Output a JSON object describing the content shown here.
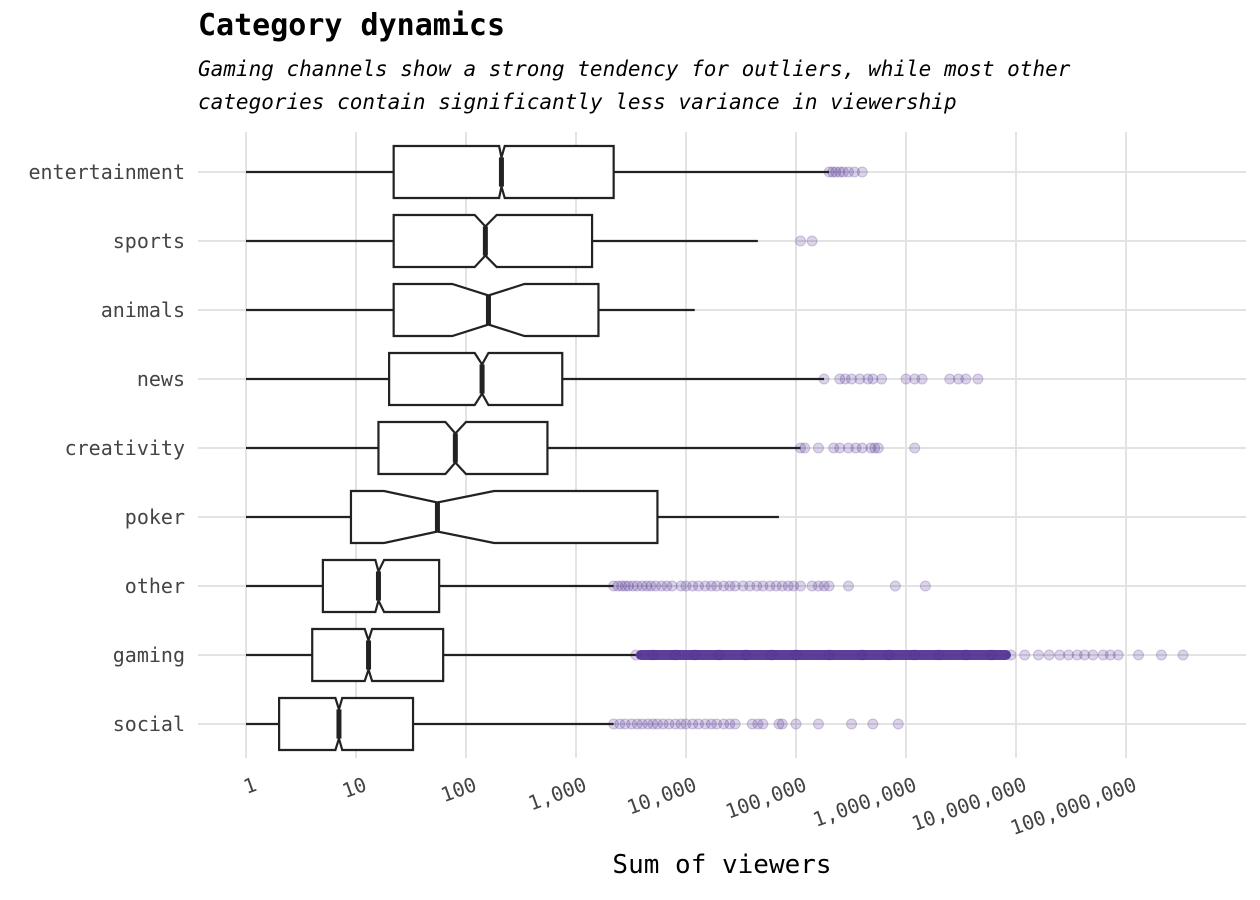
{
  "chart_data": {
    "type": "boxplot",
    "title": "Category dynamics",
    "subtitle": [
      "Gaming channels show a strong tendency for outliers, while most other",
      "categories contain significantly less variance in viewership"
    ],
    "xlabel": "Sum of viewers",
    "ylabel": "",
    "x_scale": "log10",
    "xlim": [
      0.6,
      750000000
    ],
    "x_ticks": [
      1,
      10,
      100,
      1000,
      10000,
      100000,
      1000000,
      10000000,
      100000000
    ],
    "x_tick_labels": [
      "1",
      "10",
      "100",
      "1,000",
      "10,000",
      "100,000",
      "1,000,000",
      "10,000,000",
      "100,000,000"
    ],
    "notched": true,
    "outlier_color": "#4b2a8f",
    "grid": true,
    "categories": [
      "entertainment",
      "sports",
      "animals",
      "news",
      "creativity",
      "poker",
      "other",
      "gaming",
      "social"
    ],
    "boxes": [
      {
        "category": "entertainment",
        "whisker_low": 1,
        "q1": 22,
        "median": 210,
        "q3": 2200,
        "whisker_high": 200000,
        "notch": [
          200,
          225
        ],
        "outliers": [
          200000,
          215000,
          230000,
          250000,
          270000,
          300000,
          340000,
          400000
        ]
      },
      {
        "category": "sports",
        "whisker_low": 1,
        "q1": 22,
        "median": 150,
        "q3": 1400,
        "whisker_high": 45000,
        "notch": [
          120,
          190
        ],
        "outliers": [
          110000,
          140000
        ]
      },
      {
        "category": "animals",
        "whisker_low": 1,
        "q1": 22,
        "median": 160,
        "q3": 1600,
        "whisker_high": 12000,
        "notch": [
          75,
          340
        ],
        "outliers": []
      },
      {
        "category": "news",
        "whisker_low": 1,
        "q1": 20,
        "median": 140,
        "q3": 750,
        "whisker_high": 180000,
        "notch": [
          120,
          160
        ],
        "outliers": [
          180000,
          250000,
          280000,
          320000,
          380000,
          450000,
          500000,
          600000,
          1000000,
          1200000,
          1400000,
          2500000,
          3000000,
          3500000,
          4500000
        ]
      },
      {
        "category": "creativity",
        "whisker_low": 1,
        "q1": 16,
        "median": 80,
        "q3": 550,
        "whisker_high": 110000,
        "notch": [
          65,
          100
        ],
        "outliers": [
          110000,
          120000,
          160000,
          220000,
          250000,
          300000,
          350000,
          400000,
          480000,
          520000,
          560000,
          1200000
        ]
      },
      {
        "category": "poker",
        "whisker_low": 1,
        "q1": 9,
        "median": 55,
        "q3": 5500,
        "whisker_high": 70000,
        "notch": [
          18,
          180
        ],
        "outliers": []
      },
      {
        "category": "other",
        "whisker_low": 1,
        "q1": 5,
        "median": 16,
        "q3": 57,
        "whisker_high": 2200,
        "notch": [
          15,
          18
        ],
        "outliers": [
          2200,
          2400,
          2600,
          2800,
          3000,
          3300,
          3600,
          4000,
          4400,
          4800,
          5300,
          6000,
          6700,
          7500,
          9000,
          10000,
          11500,
          13000,
          15000,
          17000,
          19000,
          22000,
          25000,
          28000,
          33000,
          38000,
          44000,
          50000,
          58000,
          66000,
          75000,
          85000,
          95000,
          110000,
          140000,
          160000,
          180000,
          200000,
          300000,
          800000,
          1500000
        ]
      },
      {
        "category": "gaming",
        "whisker_low": 1,
        "q1": 4,
        "median": 13,
        "q3": 62,
        "whisker_high": 3500,
        "notch": [
          12,
          14
        ],
        "outliers": [
          3500,
          5000,
          8000,
          12000,
          20000,
          35000,
          60000,
          100000,
          200000,
          400000,
          700000,
          1200000,
          2000000,
          3500000,
          6000000,
          9000000,
          12000000,
          16000000,
          20000000,
          25000000,
          30000000,
          36000000,
          42000000,
          50000000,
          62000000,
          72000000,
          85000000,
          130000000,
          210000000,
          330000000
        ]
      },
      {
        "category": "social",
        "whisker_low": 1,
        "q1": 2,
        "median": 7,
        "q3": 33,
        "whisker_high": 2200,
        "notch": [
          6.5,
          7.5
        ],
        "outliers": [
          2200,
          2500,
          2800,
          3200,
          3600,
          4000,
          4500,
          5000,
          5500,
          6200,
          7000,
          8000,
          9000,
          10000,
          11500,
          13000,
          15000,
          17000,
          19000,
          22000,
          25000,
          28000,
          40000,
          45000,
          50000,
          70000,
          75000,
          100000,
          160000,
          320000,
          500000,
          850000
        ]
      }
    ]
  }
}
